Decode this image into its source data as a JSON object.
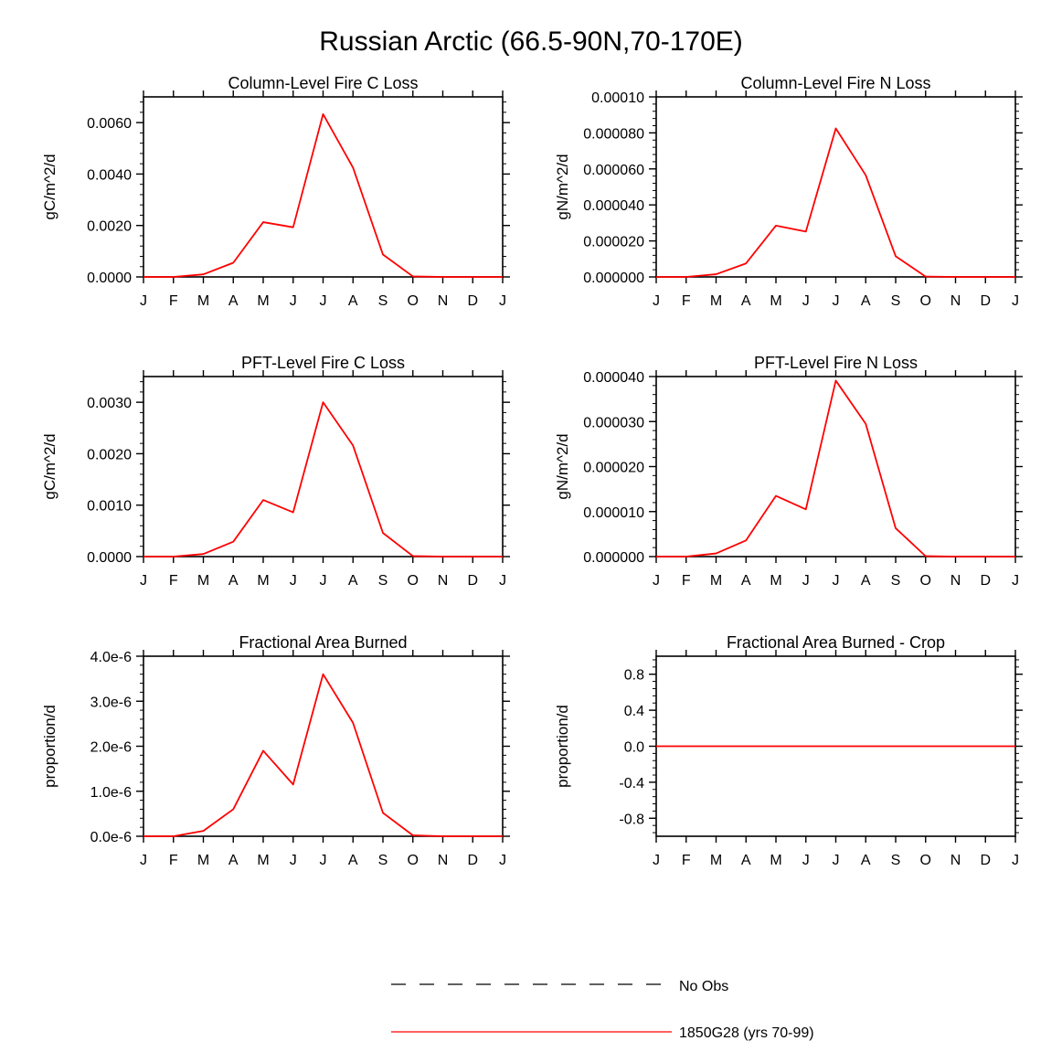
{
  "title": "Russian Arctic (66.5-90N,70-170E)",
  "months": [
    "J",
    "F",
    "M",
    "A",
    "M",
    "J",
    "J",
    "A",
    "S",
    "O",
    "N",
    "D",
    "J"
  ],
  "colors": {
    "model": "#ff0000",
    "axis": "#000000",
    "obs": "#000000"
  },
  "legend": {
    "obs_label": "No Obs",
    "model_label": "1850G28 (yrs 70-99)"
  },
  "chart_data": [
    {
      "type": "line",
      "title": "Column-Level Fire C Loss",
      "ylabel": "gC/m^2/d",
      "ylim": [
        0,
        0.007
      ],
      "yticks": [
        0,
        0.002,
        0.004,
        0.006
      ],
      "ytick_labels": [
        "0.0000",
        "0.0020",
        "0.0040",
        "0.0060"
      ],
      "series": [
        {
          "name": "1850G28 (yrs 70-99)",
          "values": [
            0,
            0,
            0.0001,
            0.00055,
            0.00213,
            0.00193,
            0.00633,
            0.00425,
            0.00087,
            2e-05,
            0,
            0,
            0
          ]
        }
      ]
    },
    {
      "type": "line",
      "title": "Column-Level Fire N Loss",
      "ylabel": "gN/m^2/d",
      "ylim": [
        0,
        0.0001
      ],
      "yticks": [
        0,
        2e-05,
        4e-05,
        6e-05,
        8e-05,
        0.0001
      ],
      "ytick_labels": [
        "0.000000",
        "0.000020",
        "0.000040",
        "0.000060",
        "0.000080",
        "0.00010"
      ],
      "series": [
        {
          "name": "1850G28 (yrs 70-99)",
          "values": [
            0,
            0,
            1.5e-06,
            7.5e-06,
            2.85e-05,
            2.52e-05,
            8.25e-05,
            5.65e-05,
            1.15e-05,
            2e-07,
            0,
            0,
            0
          ]
        }
      ]
    },
    {
      "type": "line",
      "title": "PFT-Level Fire C Loss",
      "ylabel": "gC/m^2/d",
      "ylim": [
        0,
        0.0035
      ],
      "yticks": [
        0,
        0.001,
        0.002,
        0.003
      ],
      "ytick_labels": [
        "0.0000",
        "0.0010",
        "0.0020",
        "0.0030"
      ],
      "series": [
        {
          "name": "1850G28 (yrs 70-99)",
          "values": [
            0,
            0,
            5e-05,
            0.00029,
            0.0011,
            0.00086,
            0.003,
            0.00216,
            0.00046,
            1e-05,
            0,
            0,
            0
          ]
        }
      ]
    },
    {
      "type": "line",
      "title": "PFT-Level Fire N Loss",
      "ylabel": "gN/m^2/d",
      "ylim": [
        0,
        4e-05
      ],
      "yticks": [
        0,
        1e-05,
        2e-05,
        3e-05,
        4e-05
      ],
      "ytick_labels": [
        "0.000000",
        "0.000010",
        "0.000020",
        "0.000030",
        "0.000040"
      ],
      "series": [
        {
          "name": "1850G28 (yrs 70-99)",
          "values": [
            0,
            0,
            7e-07,
            3.6e-06,
            1.35e-05,
            1.05e-05,
            3.91e-05,
            2.95e-05,
            6.3e-06,
            1e-07,
            0,
            0,
            0
          ]
        }
      ]
    },
    {
      "type": "line",
      "title": "Fractional Area Burned",
      "ylabel": "proportion/d",
      "ylim": [
        0,
        4e-06
      ],
      "yticks": [
        0,
        1e-06,
        2e-06,
        3e-06,
        4e-06
      ],
      "ytick_labels": [
        "0.0e-6",
        "1.0e-6",
        "2.0e-6",
        "3.0e-6",
        "4.0e-6"
      ],
      "series": [
        {
          "name": "1850G28 (yrs 70-99)",
          "values": [
            0,
            0,
            1.2e-07,
            6e-07,
            1.9e-06,
            1.15e-06,
            3.6e-06,
            2.52e-06,
            5.2e-07,
            2e-08,
            0,
            0,
            0
          ]
        }
      ]
    },
    {
      "type": "line",
      "title": "Fractional Area Burned - Crop",
      "ylabel": "proportion/d",
      "ylim": [
        -1,
        1
      ],
      "yticks": [
        -0.8,
        -0.4,
        0,
        0.4,
        0.8
      ],
      "ytick_labels": [
        "-0.8",
        "-0.4",
        "0.0",
        "0.4",
        "0.8"
      ],
      "series": [
        {
          "name": "1850G28 (yrs 70-99)",
          "values": [
            0,
            0,
            0,
            0,
            0,
            0,
            0,
            0,
            0,
            0,
            0,
            0,
            0
          ]
        }
      ]
    }
  ]
}
